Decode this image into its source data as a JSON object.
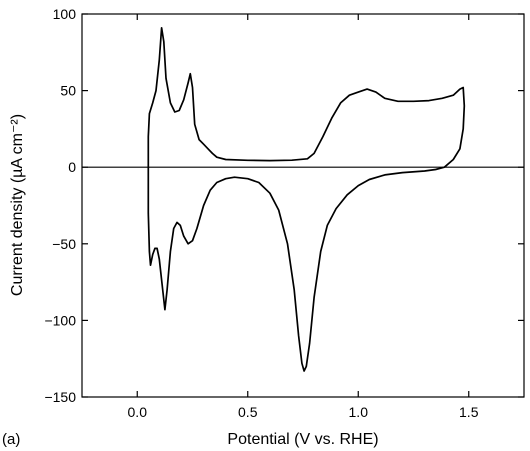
{
  "chart_data": {
    "type": "line",
    "panel_label": "(a)",
    "title": "",
    "xlabel": "Potential (V vs. RHE)",
    "ylabel": "Current density (µA cm⁻²)",
    "xlim": [
      -0.25,
      1.75
    ],
    "ylim": [
      -150,
      100
    ],
    "x_ticks": [
      0.0,
      0.5,
      1.0,
      1.5
    ],
    "x_tick_labels": [
      "0.0",
      "0.5",
      "1.0",
      "1.5"
    ],
    "y_ticks": [
      -150,
      -100,
      -50,
      0,
      50,
      100
    ],
    "y_tick_labels": [
      "−150",
      "−100",
      "−50",
      "0",
      "50",
      "100"
    ],
    "grid": false,
    "zero_line": 0,
    "line_color": "#000000",
    "series": [
      {
        "points": [
          [
            0.05,
            2
          ],
          [
            0.05,
            20
          ],
          [
            0.055,
            35
          ],
          [
            0.07,
            42
          ],
          [
            0.085,
            50
          ],
          [
            0.1,
            70
          ],
          [
            0.11,
            91
          ],
          [
            0.12,
            82
          ],
          [
            0.13,
            58
          ],
          [
            0.15,
            42
          ],
          [
            0.17,
            36
          ],
          [
            0.19,
            37
          ],
          [
            0.21,
            44
          ],
          [
            0.23,
            55
          ],
          [
            0.24,
            61
          ],
          [
            0.25,
            52
          ],
          [
            0.26,
            28
          ],
          [
            0.28,
            18
          ],
          [
            0.3,
            15
          ],
          [
            0.32,
            12
          ],
          [
            0.34,
            9
          ],
          [
            0.36,
            6.5
          ],
          [
            0.4,
            5
          ],
          [
            0.5,
            4.5
          ],
          [
            0.6,
            4.3
          ],
          [
            0.7,
            4.6
          ],
          [
            0.77,
            5.5
          ],
          [
            0.8,
            9
          ],
          [
            0.84,
            20
          ],
          [
            0.88,
            32
          ],
          [
            0.92,
            42
          ],
          [
            0.96,
            47
          ],
          [
            1.0,
            49
          ],
          [
            1.04,
            51
          ],
          [
            1.08,
            49
          ],
          [
            1.12,
            45
          ],
          [
            1.18,
            43
          ],
          [
            1.25,
            43
          ],
          [
            1.32,
            43.5
          ],
          [
            1.38,
            45
          ],
          [
            1.43,
            47
          ],
          [
            1.46,
            51
          ],
          [
            1.475,
            52
          ],
          [
            1.48,
            40
          ],
          [
            1.475,
            25
          ],
          [
            1.46,
            12
          ],
          [
            1.43,
            5
          ],
          [
            1.39,
            0
          ],
          [
            1.35,
            -1.5
          ],
          [
            1.3,
            -2.5
          ],
          [
            1.2,
            -3.5
          ],
          [
            1.12,
            -5
          ],
          [
            1.05,
            -8
          ],
          [
            1.0,
            -12
          ],
          [
            0.95,
            -18
          ],
          [
            0.9,
            -27
          ],
          [
            0.86,
            -38
          ],
          [
            0.83,
            -55
          ],
          [
            0.8,
            -85
          ],
          [
            0.78,
            -115
          ],
          [
            0.765,
            -130
          ],
          [
            0.755,
            -133
          ],
          [
            0.745,
            -128
          ],
          [
            0.73,
            -110
          ],
          [
            0.71,
            -80
          ],
          [
            0.68,
            -50
          ],
          [
            0.64,
            -28
          ],
          [
            0.6,
            -17
          ],
          [
            0.55,
            -10
          ],
          [
            0.5,
            -7.5
          ],
          [
            0.44,
            -6.5
          ],
          [
            0.4,
            -7.5
          ],
          [
            0.36,
            -10
          ],
          [
            0.33,
            -15
          ],
          [
            0.3,
            -25
          ],
          [
            0.27,
            -40
          ],
          [
            0.25,
            -48
          ],
          [
            0.23,
            -50
          ],
          [
            0.21,
            -45
          ],
          [
            0.195,
            -38
          ],
          [
            0.18,
            -36
          ],
          [
            0.165,
            -40
          ],
          [
            0.15,
            -55
          ],
          [
            0.135,
            -80
          ],
          [
            0.125,
            -93
          ],
          [
            0.115,
            -80
          ],
          [
            0.1,
            -60
          ],
          [
            0.09,
            -53
          ],
          [
            0.08,
            -53
          ],
          [
            0.07,
            -57
          ],
          [
            0.06,
            -64
          ],
          [
            0.055,
            -55
          ],
          [
            0.05,
            -30
          ],
          [
            0.05,
            2
          ]
        ]
      }
    ]
  }
}
